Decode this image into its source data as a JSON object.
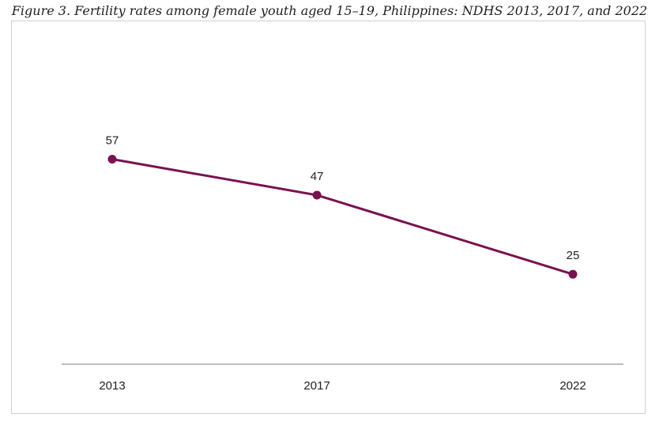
{
  "figure": {
    "caption": "Figure 3. Fertility rates among female youth aged 15–19, Philippines: NDHS 2013, 2017, and 2022"
  },
  "chart_data": {
    "type": "line",
    "title": "",
    "xlabel": "",
    "ylabel": "",
    "categories": [
      "2013",
      "2017",
      "2022"
    ],
    "x": [
      2013,
      2017,
      2022
    ],
    "series": [
      {
        "values": [
          57,
          47,
          25
        ],
        "color": "#7a1250"
      }
    ],
    "data_labels": [
      "57",
      "47",
      "25"
    ],
    "ylim": [
      0,
      85
    ],
    "grid": false,
    "legend": "none",
    "axis_color": "#bdbdbd"
  }
}
